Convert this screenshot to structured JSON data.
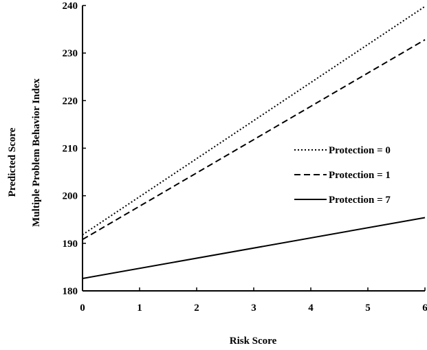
{
  "chart_data": {
    "type": "line",
    "title": "",
    "xlabel": "Risk Score",
    "ylabel_lines": [
      "Predicted Score",
      "Multiple Problem Behavior Index"
    ],
    "xlim": [
      0,
      6
    ],
    "ylim": [
      180,
      240
    ],
    "x_ticks": [
      0,
      1,
      2,
      3,
      4,
      5,
      6
    ],
    "y_ticks": [
      180,
      190,
      200,
      210,
      220,
      230,
      240
    ],
    "grid": false,
    "legend_position": "right",
    "series": [
      {
        "name": "Protection = 0",
        "style": "dotted",
        "x": [
          0,
          6
        ],
        "values": [
          191.8,
          239.8
        ]
      },
      {
        "name": "Protection = 1",
        "style": "dashed",
        "x": [
          0,
          6
        ],
        "values": [
          190.8,
          232.8
        ]
      },
      {
        "name": "Protection = 7",
        "style": "solid",
        "x": [
          0,
          6
        ],
        "values": [
          182.6,
          195.4
        ]
      }
    ]
  }
}
